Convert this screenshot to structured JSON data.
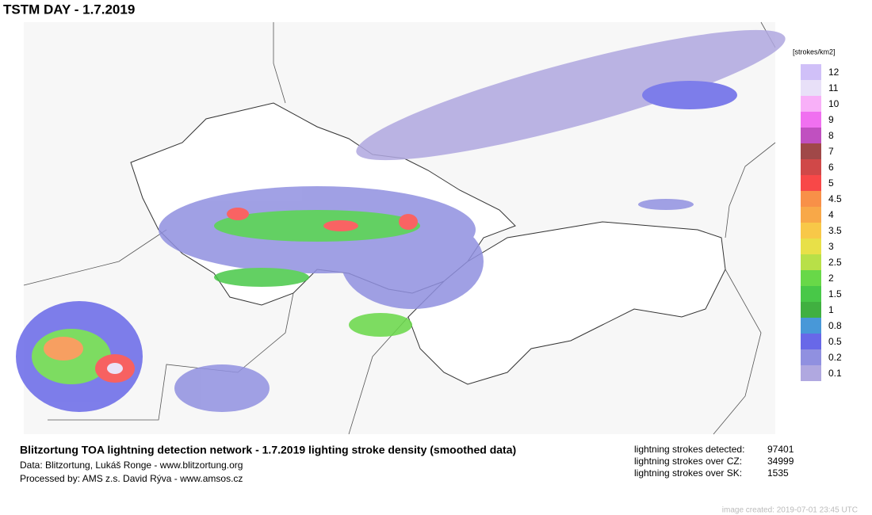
{
  "title": "TSTM DAY - 1.7.2019",
  "legend": {
    "unit": "[strokes/km2]",
    "items": [
      {
        "label": "12",
        "color": "#d0c0f8"
      },
      {
        "label": "11",
        "color": "#e8e0f8"
      },
      {
        "label": "10",
        "color": "#f8b0f8"
      },
      {
        "label": "9",
        "color": "#f070f0"
      },
      {
        "label": "8",
        "color": "#c050c0"
      },
      {
        "label": "7",
        "color": "#a04848"
      },
      {
        "label": "6",
        "color": "#d04848"
      },
      {
        "label": "5",
        "color": "#f84848"
      },
      {
        "label": "4.5",
        "color": "#f89048"
      },
      {
        "label": "4",
        "color": "#f8a848"
      },
      {
        "label": "3.5",
        "color": "#f8c848"
      },
      {
        "label": "3",
        "color": "#e8e048"
      },
      {
        "label": "2.5",
        "color": "#b8e048"
      },
      {
        "label": "2",
        "color": "#68d848"
      },
      {
        "label": "1.5",
        "color": "#48c848"
      },
      {
        "label": "1",
        "color": "#40b040"
      },
      {
        "label": "0.8",
        "color": "#4898d8"
      },
      {
        "label": "0.5",
        "color": "#6868e8"
      },
      {
        "label": "0.2",
        "color": "#9090e0"
      },
      {
        "label": "0.1",
        "color": "#b0a8e0"
      }
    ]
  },
  "footer": {
    "headline": "Blitzortung TOA lightning detection network - 1.7.2019  lighting stroke density (smoothed data)",
    "data_line": "Data: Blitzortung, Lukáš Ronge - www.blitzortung.org",
    "processed_line": "Processed by: AMS z.s. David Rýva - www.amsos.cz"
  },
  "stats": [
    {
      "label": "lightning strokes detected:",
      "value": "97401"
    },
    {
      "label": "lightning strokes over CZ:",
      "value": "34999"
    },
    {
      "label": "lightning strokes over SK:",
      "value": "1535"
    }
  ],
  "created": "image created: 2019-07-01 23:45 UTC"
}
